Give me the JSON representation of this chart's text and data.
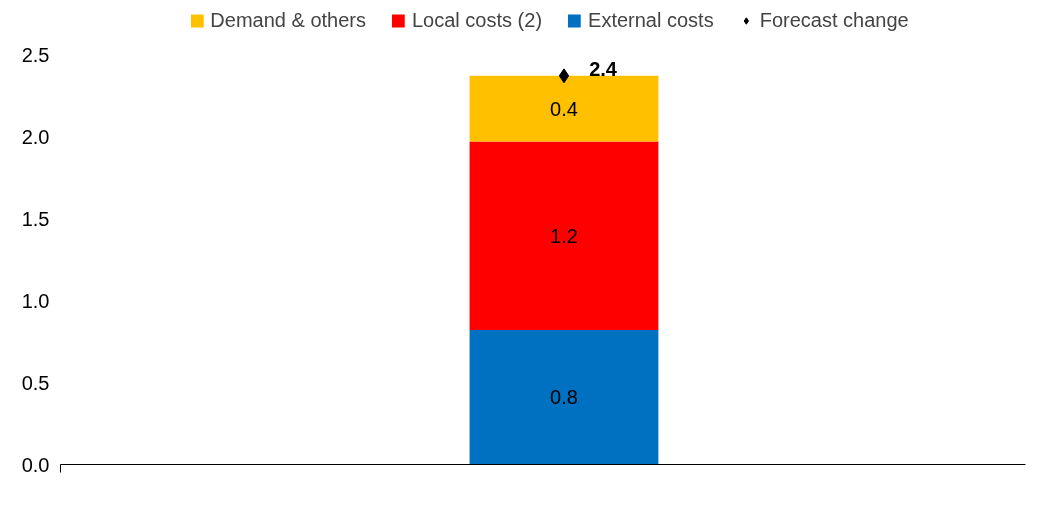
{
  "chart_data": {
    "type": "bar",
    "stacked": true,
    "categories": [
      null
    ],
    "ylim": [
      0,
      2.5
    ],
    "yticks": [
      {
        "value": 0,
        "label": "0.0"
      },
      {
        "value": 0.5,
        "label": "0.5"
      },
      {
        "value": 1,
        "label": "1.0"
      },
      {
        "value": 1.5,
        "label": "1.5"
      },
      {
        "value": 2,
        "label": "2.0"
      },
      {
        "value": 2.5,
        "label": "2.5"
      }
    ],
    "grid": false,
    "legend": "top",
    "tick_labels": "y",
    "series": [
      {
        "name": "External costs",
        "color": "#0070c0",
        "values": [
          0.82
        ],
        "value_labels": [
          "0.8"
        ]
      },
      {
        "name": "Local costs (2)",
        "color": "#ff0000",
        "values": [
          1.15
        ],
        "value_labels": [
          "1.2"
        ]
      },
      {
        "name": "Demand & others",
        "color": "#ffc000",
        "values": [
          0.4
        ],
        "value_labels": [
          "0.4"
        ]
      },
      {
        "name": "Forecast change",
        "type": "scatter",
        "marker": "diamond",
        "color": "#000000",
        "values": [
          2.37
        ],
        "value_labels": [
          "2.4"
        ]
      }
    ]
  }
}
